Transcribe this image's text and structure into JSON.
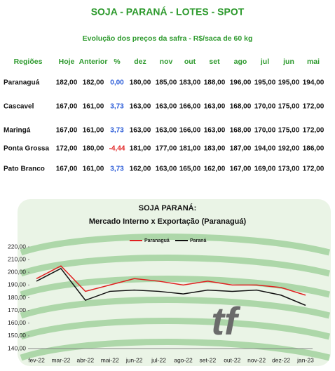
{
  "table": {
    "title": "SOJA - PARANÁ - LOTES - SPOT",
    "subtitle": "Evolução dos preços da safra - R$/saca de 60 kg",
    "header": [
      "Regiões",
      "Hoje",
      "Anterior",
      "%",
      "dez",
      "nov",
      "out",
      "set",
      "ago",
      "jul",
      "jun",
      "mai"
    ],
    "rows": [
      [
        "Paranaguá",
        "182,00",
        "182,00",
        "0,00",
        "180,00",
        "185,00",
        "183,00",
        "188,00",
        "196,00",
        "195,00",
        "195,00",
        "194,00"
      ],
      [
        "Cascavel",
        "167,00",
        "161,00",
        "3,73",
        "163,00",
        "163,00",
        "166,00",
        "163,00",
        "168,00",
        "170,00",
        "175,00",
        "172,00"
      ],
      [
        "Maringá",
        "167,00",
        "161,00",
        "3,73",
        "163,00",
        "163,00",
        "166,00",
        "163,00",
        "168,00",
        "170,00",
        "175,00",
        "172,00"
      ],
      [
        "Ponta Grossa",
        "172,00",
        "180,00",
        "-4,44",
        "181,00",
        "177,00",
        "181,00",
        "183,00",
        "187,00",
        "194,00",
        "192,00",
        "186,00"
      ],
      [
        "Pato Branco",
        "167,00",
        "161,00",
        "3,73",
        "162,00",
        "163,00",
        "165,00",
        "162,00",
        "167,00",
        "169,00",
        "173,00",
        "172,00"
      ]
    ]
  },
  "logo": "tf",
  "chart_data": {
    "type": "line",
    "title": "SOJA PARANÁ:",
    "subtitle": "Mercado Interno x Exportação (Paranaguá)",
    "categories": [
      "fev-22",
      "mar-22",
      "abr-22",
      "mai-22",
      "jun-22",
      "jul-22",
      "ago-22",
      "set-22",
      "out-22",
      "nov-22",
      "dez-22",
      "jan-23"
    ],
    "series": [
      {
        "name": "Paranaguá",
        "color": "#e02020",
        "values": [
          195,
          205,
          185,
          190,
          195,
          193,
          190,
          193,
          190,
          190,
          188,
          182
        ]
      },
      {
        "name": "Paraná",
        "color": "#111111",
        "values": [
          193,
          203,
          178,
          185,
          186,
          185,
          183,
          186,
          185,
          186,
          182,
          174
        ]
      }
    ],
    "ylim": [
      140,
      220
    ],
    "yticks": [
      {
        "value": 140,
        "label": "140,00"
      },
      {
        "value": 150,
        "label": "150,00"
      },
      {
        "value": 160,
        "label": "160,00"
      },
      {
        "value": 170,
        "label": "170,00"
      },
      {
        "value": 180,
        "label": "180,00"
      },
      {
        "value": 190,
        "label": "190,00"
      },
      {
        "value": 200,
        "label": "200,00"
      },
      {
        "value": 210,
        "label": "210,00"
      },
      {
        "value": 220,
        "label": "220,00"
      }
    ],
    "legend": "top"
  }
}
